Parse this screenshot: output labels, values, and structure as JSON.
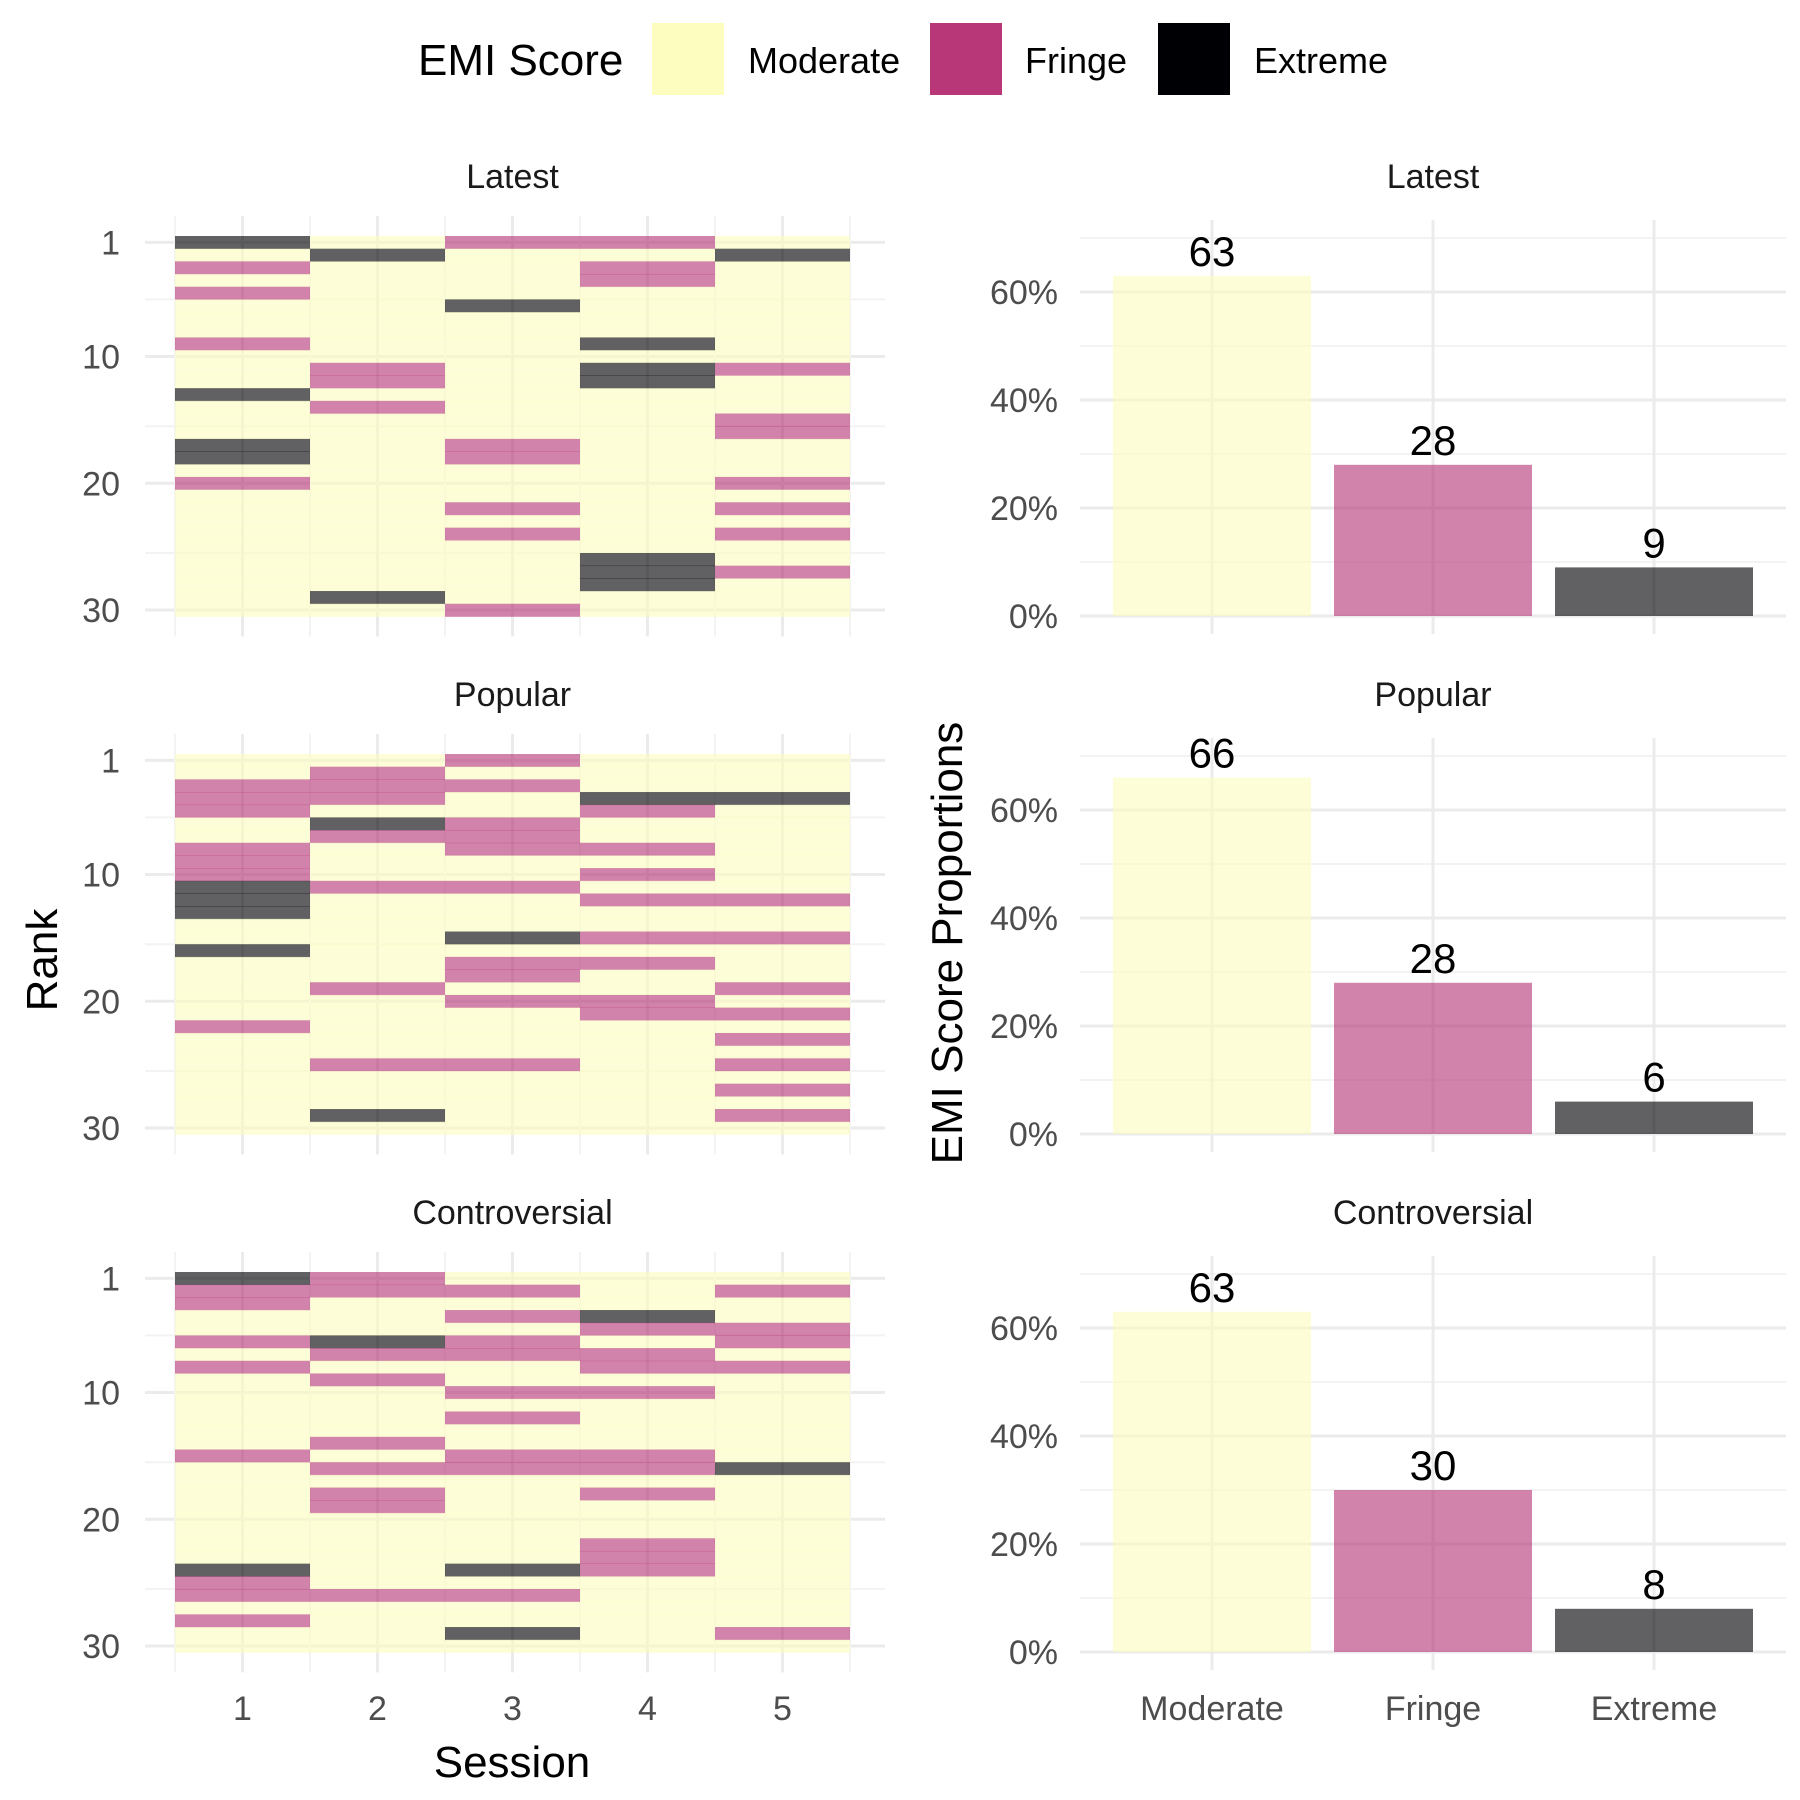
{
  "legend": {
    "title": "EMI Score",
    "items": [
      {
        "label": "Moderate",
        "color": "#FCFDBF"
      },
      {
        "label": "Fringe",
        "color": "#B73779"
      },
      {
        "label": "Extreme",
        "color": "#000004"
      }
    ]
  },
  "chart_data": [
    {
      "type": "heatmap",
      "xlabel": "Session",
      "ylabel": "Rank",
      "x": [
        1,
        2,
        3,
        4,
        5
      ],
      "y_ticks": [
        1,
        10,
        20,
        30
      ],
      "ylim": [
        1,
        30
      ],
      "colors": {
        "Moderate": "#FCFDBF",
        "Fringe": "#B73779",
        "Extreme": "#000004"
      },
      "panels": [
        {
          "title": "Latest",
          "sessions": [
            {
              "session": 1,
              "fringe_ranks": [
                3,
                5,
                9,
                20
              ],
              "extreme_ranks": [
                1,
                13,
                17,
                18
              ]
            },
            {
              "session": 2,
              "fringe_ranks": [
                11,
                12,
                14
              ],
              "extreme_ranks": [
                2,
                29
              ]
            },
            {
              "session": 3,
              "fringe_ranks": [
                1,
                17,
                18,
                22,
                24,
                30
              ],
              "extreme_ranks": [
                6
              ]
            },
            {
              "session": 4,
              "fringe_ranks": [
                1,
                3,
                4
              ],
              "extreme_ranks": [
                9,
                11,
                12,
                26,
                27,
                28
              ]
            },
            {
              "session": 5,
              "fringe_ranks": [
                11,
                15,
                16,
                20,
                22,
                24,
                27
              ],
              "extreme_ranks": [
                2
              ]
            }
          ]
        },
        {
          "title": "Popular",
          "sessions": [
            {
              "session": 1,
              "fringe_ranks": [
                3,
                4,
                5,
                8,
                9,
                10,
                22
              ],
              "extreme_ranks": [
                11,
                12,
                13,
                16
              ]
            },
            {
              "session": 2,
              "fringe_ranks": [
                2,
                3,
                4,
                7,
                11,
                19,
                25
              ],
              "extreme_ranks": [
                6,
                29
              ]
            },
            {
              "session": 3,
              "fringe_ranks": [
                1,
                3,
                6,
                7,
                8,
                11,
                17,
                18,
                20,
                25
              ],
              "extreme_ranks": [
                15
              ]
            },
            {
              "session": 4,
              "fringe_ranks": [
                5,
                8,
                10,
                12,
                15,
                17,
                20,
                21
              ],
              "extreme_ranks": [
                4
              ]
            },
            {
              "session": 5,
              "fringe_ranks": [
                12,
                15,
                19,
                21,
                23,
                25,
                27,
                29
              ],
              "extreme_ranks": [
                4
              ]
            }
          ]
        },
        {
          "title": "Controversial",
          "sessions": [
            {
              "session": 1,
              "fringe_ranks": [
                2,
                3,
                6,
                8,
                15,
                25,
                26,
                28
              ],
              "extreme_ranks": [
                1,
                24
              ]
            },
            {
              "session": 2,
              "fringe_ranks": [
                1,
                2,
                7,
                9,
                14,
                16,
                18,
                19,
                26
              ],
              "extreme_ranks": [
                6
              ]
            },
            {
              "session": 3,
              "fringe_ranks": [
                2,
                4,
                6,
                7,
                10,
                12,
                15,
                16,
                26
              ],
              "extreme_ranks": [
                24,
                29
              ]
            },
            {
              "session": 4,
              "fringe_ranks": [
                5,
                7,
                8,
                10,
                15,
                16,
                18,
                22,
                23,
                24
              ],
              "extreme_ranks": [
                4
              ]
            },
            {
              "session": 5,
              "fringe_ranks": [
                2,
                5,
                6,
                8,
                29
              ],
              "extreme_ranks": [
                16
              ]
            }
          ]
        }
      ]
    },
    {
      "type": "bar",
      "ylabel": "EMI Score Proportions",
      "categories": [
        "Moderate",
        "Fringe",
        "Extreme"
      ],
      "y_ticks": [
        "0%",
        "20%",
        "40%",
        "60%"
      ],
      "ylim": [
        0,
        70
      ],
      "panels": [
        {
          "title": "Latest",
          "values": [
            63,
            28,
            9
          ]
        },
        {
          "title": "Popular",
          "values": [
            66,
            28,
            6
          ]
        },
        {
          "title": "Controversial",
          "values": [
            63,
            30,
            8
          ]
        }
      ]
    }
  ]
}
